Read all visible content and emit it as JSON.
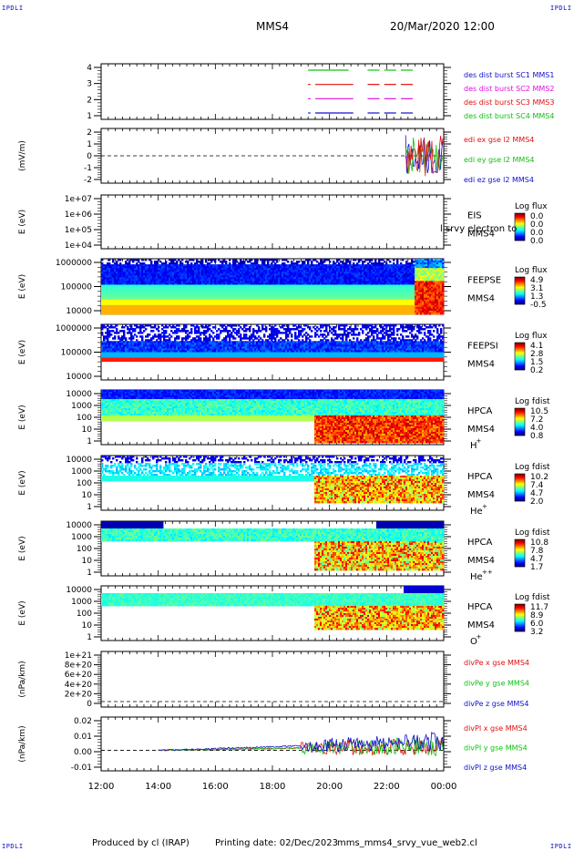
{
  "header": {
    "corner_tl": "IPDLI",
    "corner_tr": "IPDLI",
    "corner_bl": "IPDLI",
    "corner_br": "IPDLI",
    "spacecraft": "MMS4",
    "datetime": "20/Mar/2020 12:00"
  },
  "footer": {
    "produced_by": "Produced by cl (IRAP)",
    "printing_date": "Printing date: 02/Dec/2023",
    "filename": "mms_mms4_srvy_vue_web2.cl"
  },
  "colors": {
    "blue": "#1010d0",
    "green": "#10c010",
    "red": "#e01010",
    "magenta": "#e010e0"
  },
  "chart_data": {
    "type": "line",
    "x_ticks": [
      "12:00",
      "14:00",
      "16:00",
      "18:00",
      "20:00",
      "22:00",
      "00:00"
    ],
    "x_range": [
      "12:00",
      "00:00"
    ],
    "panels": [
      {
        "id": "burst",
        "type": "line",
        "yticks": [
          "4",
          "3",
          "2",
          "1"
        ],
        "ylabel": "",
        "legend": [
          {
            "text": "des dist burst SC1 MMS1",
            "color": "#1010d0"
          },
          {
            "text": "des dist burst SC2 MMS2",
            "color": "#e010e0"
          },
          {
            "text": "des dist burst SC3 MMS3",
            "color": "#e01010"
          },
          {
            "text": "des dist burst SC4 MMS4",
            "color": "#10c010"
          }
        ],
        "series": [
          {
            "level": 4,
            "color": "#10c010",
            "segments": [
              [
                "19:15",
                "20:40"
              ],
              [
                "21:20",
                "21:45"
              ],
              [
                "21:55",
                "22:20"
              ],
              [
                "22:30",
                "22:55"
              ]
            ]
          },
          {
            "level": 3,
            "color": "#e01010",
            "segments": [
              [
                "19:15",
                "19:20"
              ],
              [
                "19:30",
                "20:50"
              ],
              [
                "21:20",
                "21:45"
              ],
              [
                "21:55",
                "22:20"
              ],
              [
                "22:30",
                "22:55"
              ]
            ]
          },
          {
            "level": 2,
            "color": "#e010e0",
            "segments": [
              [
                "19:15",
                "19:20"
              ],
              [
                "19:30",
                "20:50"
              ],
              [
                "21:20",
                "21:45"
              ],
              [
                "21:55",
                "22:20"
              ],
              [
                "22:30",
                "22:55"
              ]
            ]
          },
          {
            "level": 1,
            "color": "#1010d0",
            "segments": [
              [
                "19:15",
                "19:20"
              ],
              [
                "19:30",
                "20:50"
              ],
              [
                "21:20",
                "21:45"
              ],
              [
                "21:55",
                "22:20"
              ],
              [
                "22:30",
                "22:55"
              ]
            ]
          }
        ]
      },
      {
        "id": "edi",
        "type": "line",
        "ylabel": "(mV/m)",
        "yticks": [
          "2",
          "1",
          "0",
          "-1",
          "-2"
        ],
        "ylim": [
          -2,
          2
        ],
        "legend": [
          {
            "text": "edi ex gse l2 MMS4",
            "color": "#e01010"
          },
          {
            "text": "edi ey gse l2 MMS4",
            "color": "#10c010"
          },
          {
            "text": "edi ez gse l2 MMS4",
            "color": "#1010d0"
          }
        ],
        "data_start": "22:40"
      },
      {
        "id": "eis",
        "type": "heatmap",
        "ylabel": "E (eV)",
        "yticks": [
          "1e+07",
          "1e+06",
          "1e+05",
          "1e+04"
        ],
        "label1": "EIS",
        "label2": "MMS4",
        "overlay_text": "l srvy electron to",
        "colorbar_title": "Log flux",
        "colorbar_ticks": [
          "0.0",
          "0.0",
          "0.0",
          "0.0"
        ]
      },
      {
        "id": "feepse",
        "type": "heatmap",
        "ylabel": "E (eV)",
        "yticks": [
          "1000000",
          "100000",
          "10000"
        ],
        "label1": "FEEPSE",
        "label2": "MMS4",
        "colorbar_title": "Log flux",
        "colorbar_ticks": [
          "4.9",
          "3.1",
          "1.3",
          "-0.5"
        ]
      },
      {
        "id": "feepsi",
        "type": "heatmap",
        "ylabel": "E (eV)",
        "yticks": [
          "1000000",
          "100000",
          "10000"
        ],
        "label1": "FEEPSI",
        "label2": "MMS4",
        "colorbar_title": "Log flux",
        "colorbar_ticks": [
          "4.1",
          "2.8",
          "1.5",
          "0.2"
        ]
      },
      {
        "id": "hpca_h",
        "type": "heatmap",
        "ylabel": "E (eV)",
        "yticks": [
          "10000",
          "1000",
          "100",
          "10",
          "1"
        ],
        "label1": "HPCA",
        "label2": "MMS4",
        "species": "H",
        "charge": "+",
        "colorbar_title": "Log fdist",
        "colorbar_ticks": [
          "10.5",
          "7.2",
          "4.0",
          "0.8"
        ]
      },
      {
        "id": "hpca_he",
        "type": "heatmap",
        "ylabel": "E (eV)",
        "yticks": [
          "10000",
          "1000",
          "100",
          "10",
          "1"
        ],
        "label1": "HPCA",
        "label2": "MMS4",
        "species": "He",
        "charge": "+",
        "colorbar_title": "Log fdist",
        "colorbar_ticks": [
          "10.2",
          "7.4",
          "4.7",
          "2.0"
        ]
      },
      {
        "id": "hpca_hepp",
        "type": "heatmap",
        "ylabel": "E (eV)",
        "yticks": [
          "10000",
          "1000",
          "100",
          "10",
          "1"
        ],
        "label1": "HPCA",
        "label2": "MMS4",
        "species": "He",
        "charge": "++",
        "colorbar_title": "Log fdist",
        "colorbar_ticks": [
          "10.8",
          "7.8",
          "4.7",
          "1.7"
        ]
      },
      {
        "id": "hpca_o",
        "type": "heatmap",
        "ylabel": "E (eV)",
        "yticks": [
          "10000",
          "1000",
          "100",
          "10",
          "1"
        ],
        "label1": "HPCA",
        "label2": "MMS4",
        "species": "O",
        "charge": "+",
        "colorbar_title": "Log fdist",
        "colorbar_ticks": [
          "11.7",
          "8.9",
          "6.0",
          "3.2"
        ]
      },
      {
        "id": "divpe",
        "type": "line",
        "ylabel": "(nPa/km)",
        "yticks": [
          "1e+21",
          "8e+20",
          "6e+20",
          "4e+20",
          "2e+20",
          "0"
        ],
        "legend": [
          {
            "text": "divPe x gse MMS4",
            "color": "#e01010"
          },
          {
            "text": "divPe y gse MMS4",
            "color": "#10c010"
          },
          {
            "text": "divPe z gse MMS4",
            "color": "#1010d0"
          }
        ]
      },
      {
        "id": "divpi",
        "type": "line",
        "ylabel": "(nPa/km)",
        "yticks": [
          "0.02",
          "0.01",
          "0.00",
          "-0.01"
        ],
        "ylim": [
          -0.015,
          0.025
        ],
        "legend": [
          {
            "text": "divPI x gse MMS4",
            "color": "#e01010"
          },
          {
            "text": "divPI y gse MMS4",
            "color": "#10c010"
          },
          {
            "text": "divPI z gse MMS4",
            "color": "#1010d0"
          }
        ],
        "data_start": "14:00"
      }
    ]
  }
}
